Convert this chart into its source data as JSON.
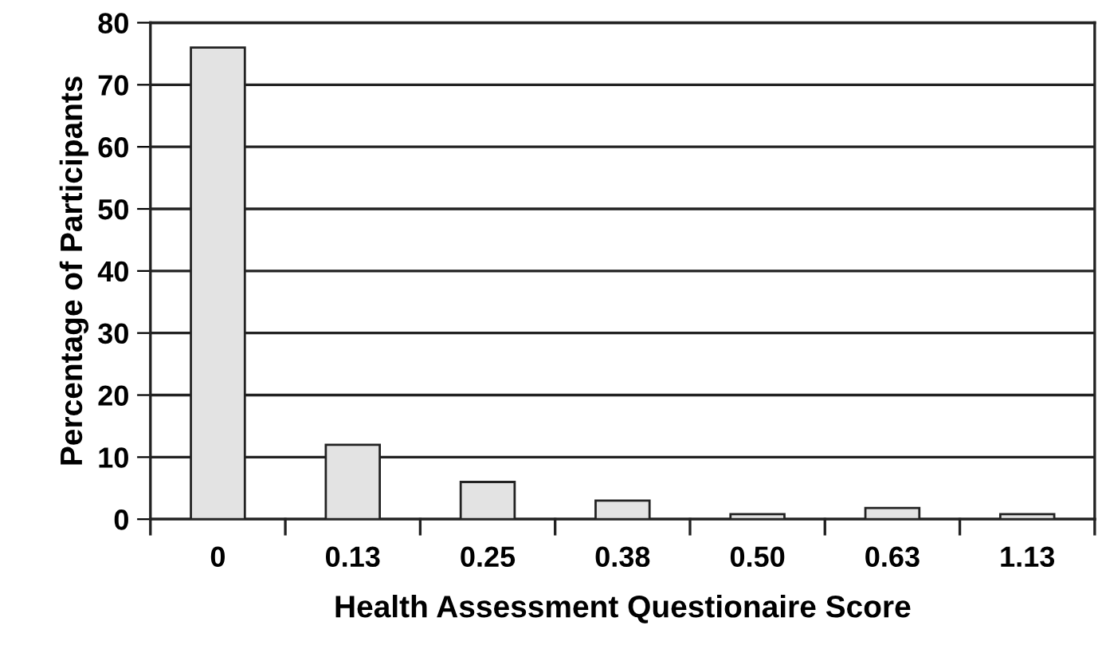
{
  "chart_data": {
    "type": "bar",
    "xlabel": "Health Assessment Questionaire Score",
    "ylabel": "Percentage of Participants",
    "categories": [
      "0",
      "0.13",
      "0.25",
      "0.38",
      "0.50",
      "0.63",
      "1.13"
    ],
    "values": [
      76,
      12,
      6,
      3,
      0.8,
      1.8,
      0.8
    ],
    "color": "#e3e3e3",
    "ylim": [
      0,
      80
    ],
    "yticks": [
      0,
      10,
      20,
      30,
      40,
      50,
      60,
      70,
      80
    ],
    "grid": "y",
    "legend": false
  }
}
